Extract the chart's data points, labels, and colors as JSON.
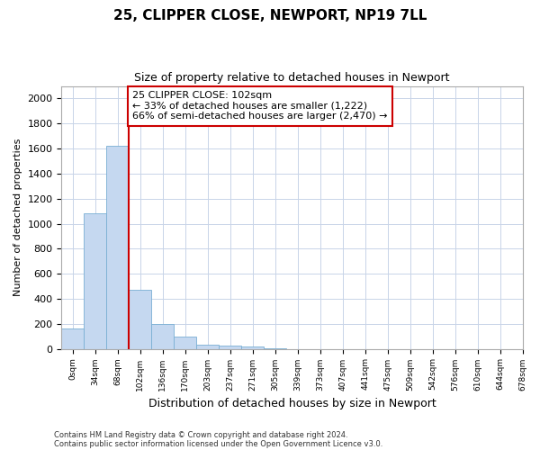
{
  "title": "25, CLIPPER CLOSE, NEWPORT, NP19 7LL",
  "subtitle": "Size of property relative to detached houses in Newport",
  "xlabel": "Distribution of detached houses by size in Newport",
  "ylabel": "Number of detached properties",
  "annotation_title": "25 CLIPPER CLOSE: 102sqm",
  "annotation_line1": "← 33% of detached houses are smaller (1,222)",
  "annotation_line2": "66% of semi-detached houses are larger (2,470) →",
  "footer_line1": "Contains HM Land Registry data © Crown copyright and database right 2024.",
  "footer_line2": "Contains public sector information licensed under the Open Government Licence v3.0.",
  "bar_values": [
    160,
    1080,
    1620,
    475,
    200,
    100,
    35,
    25,
    15,
    5,
    0,
    0,
    0,
    0,
    0,
    0,
    0,
    0,
    0,
    0
  ],
  "categories": [
    "0sqm",
    "34sqm",
    "68sqm",
    "102sqm",
    "136sqm",
    "170sqm",
    "203sqm",
    "237sqm",
    "271sqm",
    "305sqm",
    "339sqm",
    "373sqm",
    "407sqm",
    "441sqm",
    "475sqm",
    "509sqm",
    "542sqm",
    "576sqm",
    "610sqm",
    "644sqm",
    "678sqm"
  ],
  "redline_x": 3,
  "ylim": [
    0,
    2100
  ],
  "yticks": [
    0,
    200,
    400,
    600,
    800,
    1000,
    1200,
    1400,
    1600,
    1800,
    2000
  ],
  "bar_color": "#c5d8f0",
  "bar_edge_color": "#7aafd4",
  "redline_color": "#cc0000",
  "annotation_box_color": "#cc0000",
  "grid_color": "#c8d4e8",
  "bg_color": "#ffffff",
  "plot_bg_color": "#ffffff"
}
